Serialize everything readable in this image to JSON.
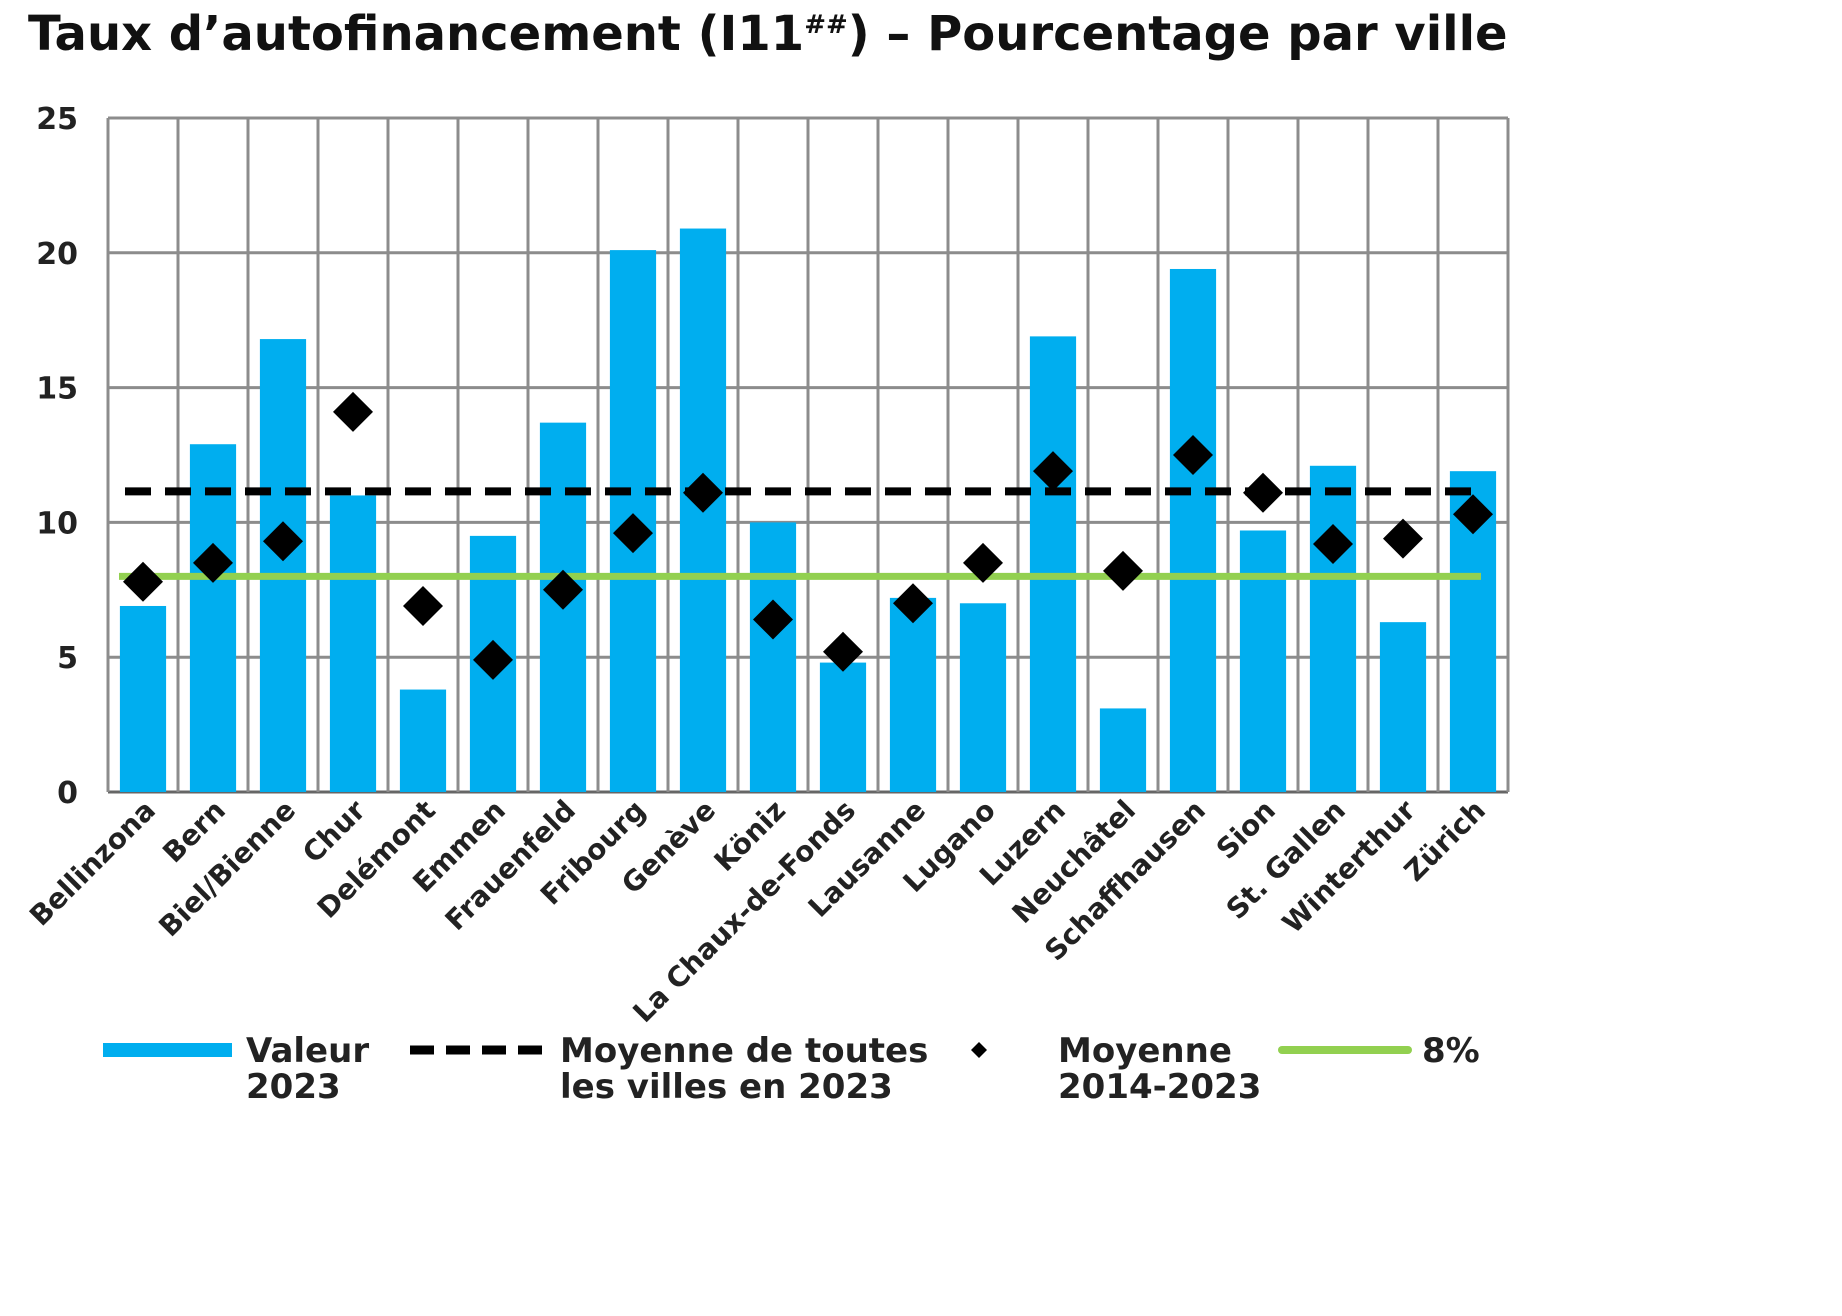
{
  "chart_data": {
    "type": "bar",
    "title": {
      "main": "Taux d’autofinancement (I11",
      "superscript": "##",
      "suffix": ") – Pourcentage par ville"
    },
    "xlabel": "",
    "ylabel": "",
    "ylim": [
      0,
      25
    ],
    "yticks": [
      0,
      5,
      10,
      15,
      20,
      25
    ],
    "grid": true,
    "legend_position": "bottom",
    "categories": [
      "Bellinzona",
      "Bern",
      "Biel/Bienne",
      "Chur",
      "Delémont",
      "Emmen",
      "Frauenfeld",
      "Fribourg",
      "Genève",
      "Köniz",
      "La Chaux-de-Fonds",
      "Lausanne",
      "Lugano",
      "Luzern",
      "Neuchâtel",
      "Schaffhausen",
      "Sion",
      "St. Gallen",
      "Winterthur",
      "Zürich"
    ],
    "series": [
      {
        "name": "Valeur 2023",
        "legend_lines": [
          "Valeur",
          "2023"
        ],
        "kind": "bar",
        "color": "#00aeef",
        "values": [
          6.9,
          12.9,
          16.8,
          11.0,
          3.8,
          9.5,
          13.7,
          20.1,
          20.9,
          10.0,
          4.8,
          7.2,
          7.0,
          16.9,
          3.1,
          19.4,
          9.7,
          12.1,
          6.3,
          11.9
        ]
      },
      {
        "name": "Moyenne de toutes les villes en 2023",
        "legend_lines": [
          "Moyenne de toutes",
          "les villes en 2023"
        ],
        "kind": "hline-dashed",
        "color": "#000000",
        "value": 11.15
      },
      {
        "name": "Moyenne 2014-2023",
        "legend_lines": [
          "Moyenne",
          "2014-2023"
        ],
        "kind": "marker-diamond",
        "color": "#000000",
        "values": [
          7.8,
          8.5,
          9.3,
          14.1,
          6.9,
          4.9,
          7.5,
          9.6,
          11.1,
          6.4,
          5.2,
          7.0,
          8.5,
          11.9,
          8.2,
          12.5,
          11.1,
          9.2,
          9.4,
          10.3
        ]
      },
      {
        "name": "8%",
        "legend_lines": [
          "8%"
        ],
        "kind": "hline",
        "color": "#92d050",
        "value": 8
      }
    ]
  }
}
